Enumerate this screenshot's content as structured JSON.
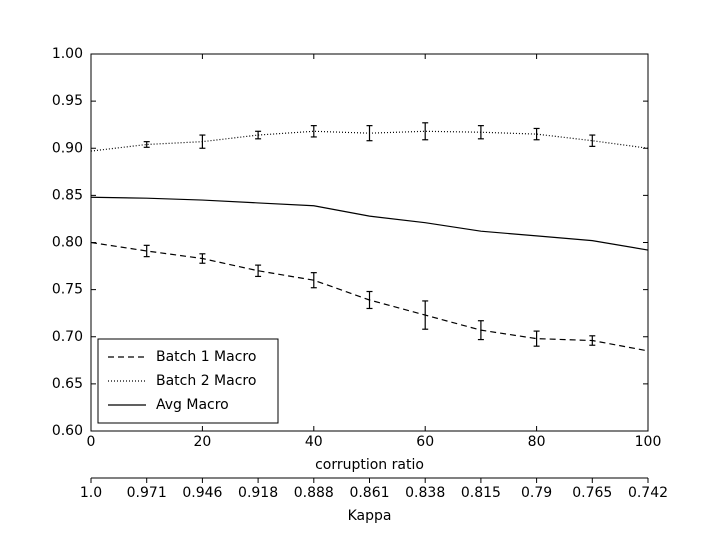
{
  "chart_data": {
    "type": "line",
    "xlabel": "corruption ratio",
    "x2label": "Kappa",
    "x": [
      0,
      10,
      20,
      30,
      40,
      50,
      60,
      70,
      80,
      90,
      100
    ],
    "xlim": [
      0,
      100
    ],
    "xticks": [
      0,
      20,
      40,
      60,
      80,
      100
    ],
    "x2ticks": [
      {
        "value": 1.0,
        "label": "1.0"
      },
      0.971,
      0.946,
      0.918,
      0.888,
      0.861,
      0.838,
      0.815,
      0.79,
      0.765,
      0.742
    ],
    "ylim": [
      0.6,
      1.0
    ],
    "yticks": [
      {
        "value": 0.6,
        "label": "0.60"
      },
      0.65,
      {
        "value": 0.7,
        "label": "0.70"
      },
      0.75,
      {
        "value": 0.8,
        "label": "0.80"
      },
      0.85,
      {
        "value": 0.9,
        "label": "0.90"
      },
      0.95,
      {
        "value": 1.0,
        "label": "1.00"
      }
    ],
    "grid": false,
    "legend": "lower left",
    "series": [
      {
        "name": "Batch 1 Macro",
        "color": "#000000",
        "dash": "6,4",
        "values": [
          0.8,
          0.791,
          0.783,
          0.77,
          0.76,
          0.739,
          0.723,
          0.707,
          0.698,
          0.696,
          0.685
        ],
        "errors": [
          null,
          0.006,
          0.005,
          0.006,
          0.008,
          0.009,
          0.015,
          0.01,
          0.008,
          0.005,
          null
        ]
      },
      {
        "name": "Batch 2 Macro",
        "color": "#000000",
        "dash": "1,2",
        "values": [
          0.897,
          0.904,
          0.907,
          0.914,
          0.918,
          0.916,
          0.918,
          0.917,
          0.915,
          0.908,
          0.9
        ],
        "errors": [
          null,
          0.003,
          0.007,
          0.004,
          0.006,
          0.008,
          0.009,
          0.007,
          0.006,
          0.006,
          null
        ]
      },
      {
        "name": "Avg Macro",
        "color": "#000000",
        "dash": "none",
        "values": [
          0.848,
          0.847,
          0.845,
          0.842,
          0.839,
          0.828,
          0.821,
          0.812,
          0.807,
          0.802,
          0.792
        ]
      }
    ]
  }
}
